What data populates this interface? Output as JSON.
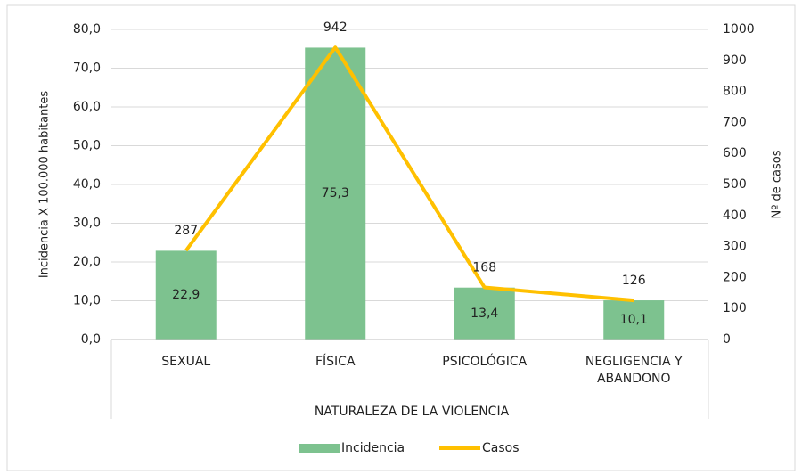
{
  "chart_data": {
    "type": "combo",
    "categories": [
      "SEXUAL",
      "FÍSICA",
      "PSICOLÓGICA",
      "NEGLIGENCIA Y ABANDONO"
    ],
    "x_label": "NATURALEZA DE LA VIOLENCIA",
    "y_label": "Incidencia X 100.000 habitantes",
    "y2_label": "Nº de casos",
    "series": [
      {
        "name": "Incidencia",
        "type": "bar",
        "color": "#7dc28f",
        "values": [
          22.9,
          75.3,
          13.4,
          10.1
        ],
        "value_labels": [
          "22,9",
          "75,3",
          "13,4",
          "10,1"
        ]
      },
      {
        "name": "Casos",
        "type": "line",
        "axis": "y2",
        "color": "#ffc000",
        "values": [
          287,
          942,
          168,
          126
        ]
      }
    ],
    "ylim": [
      0,
      80
    ],
    "yticks": [
      {
        "value": 0,
        "label": "0,0"
      },
      {
        "value": 10,
        "label": "10,0"
      },
      {
        "value": 20,
        "label": "20,0"
      },
      {
        "value": 30,
        "label": "30,0"
      },
      {
        "value": 40,
        "label": "40,0"
      },
      {
        "value": 50,
        "label": "50,0"
      },
      {
        "value": 60,
        "label": "60,0"
      },
      {
        "value": 70,
        "label": "70,0"
      },
      {
        "value": 80,
        "label": "80,0"
      }
    ],
    "y2lim": [
      0,
      1000
    ],
    "y2ticks": [
      0,
      100,
      200,
      300,
      400,
      500,
      600,
      700,
      800,
      900,
      1000
    ],
    "grid": true,
    "legend": "bottom"
  }
}
